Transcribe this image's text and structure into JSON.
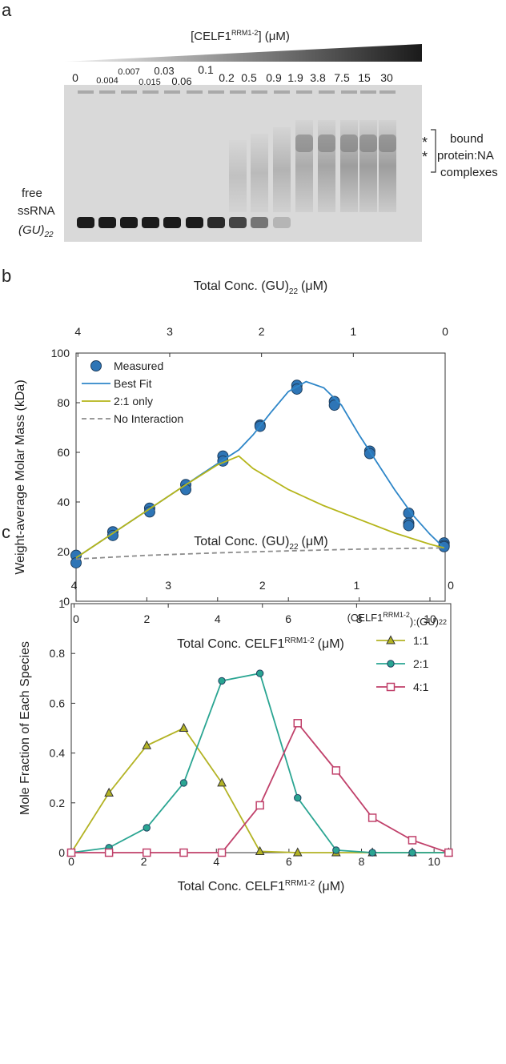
{
  "panel_labels": [
    "a",
    "b",
    "c"
  ],
  "gel": {
    "title": [
      "[CELF1",
      "RRM1-2",
      "] (μM)"
    ],
    "lanes": [
      "0",
      "0.004",
      "0.007",
      "0.015",
      "0.03",
      "0.06",
      "0.1",
      "0.2",
      "0.5",
      "0.9",
      "1.9",
      "3.8",
      "7.5",
      "15",
      "30"
    ],
    "free_label": [
      "free",
      "ssRNA"
    ],
    "rna_label": [
      "(GU)",
      "22"
    ],
    "asterisks": [
      "*",
      "*"
    ],
    "bound_label": [
      "bound",
      "protein:NA",
      "complexes"
    ]
  },
  "chart_data": [
    {
      "type": "line",
      "ylabel": "Weight-average Molar Mass (kDa)",
      "xlabel": [
        "Total Conc. CELF1",
        "RRM1-2",
        "(μM)"
      ],
      "x2label": [
        "Total Conc. (GU)",
        "22",
        "(μM)"
      ],
      "xlim": [
        0,
        10.43
      ],
      "xticks": [
        0,
        2,
        4,
        6,
        8,
        10
      ],
      "x2lim": [
        4.02,
        0
      ],
      "x2ticks": [
        4,
        3,
        2,
        1,
        0
      ],
      "ylim": [
        0,
        100
      ],
      "yticks": [
        0,
        20,
        40,
        60,
        80,
        100
      ],
      "legend": "upper left",
      "series": [
        {
          "name": "Measured",
          "color": "#2e75b6",
          "marker": "circle",
          "line": false,
          "dash": false,
          "x": [
            0,
            0,
            1.04,
            1.04,
            2.08,
            2.08,
            3.1,
            3.1,
            4.15,
            4.15,
            5.2,
            5.2,
            6.24,
            6.24,
            7.3,
            7.3,
            8.3,
            8.3,
            9.4,
            9.4,
            9.4,
            10.4,
            10.4,
            10.4
          ],
          "values": [
            18.5,
            15.5,
            28,
            26.5,
            37.5,
            36,
            47,
            45,
            58.5,
            56.5,
            71,
            70.5,
            87,
            85.5,
            80.5,
            79,
            60.5,
            59.5,
            35.5,
            31.5,
            30.5,
            23.5,
            22.5,
            22
          ]
        },
        {
          "name": "Best Fit",
          "color": "#2e86c8",
          "marker": "none",
          "line": true,
          "dash": false,
          "x": [
            0,
            1,
            2,
            3,
            4,
            4.6,
            5,
            5.5,
            6,
            6.5,
            7,
            7.5,
            8,
            8.5,
            9,
            9.5,
            10,
            10.4
          ],
          "values": [
            17.5,
            27,
            36.5,
            46,
            55.5,
            61,
            67,
            76,
            84.5,
            88.5,
            86,
            79,
            67,
            56,
            45,
            35,
            27,
            21.5
          ]
        },
        {
          "name": "2:1 only",
          "color": "#b5b51a",
          "marker": "none",
          "line": true,
          "dash": false,
          "x": [
            0,
            1,
            2,
            3,
            4,
            4.6,
            5,
            6,
            7,
            8,
            9,
            10,
            10.4
          ],
          "values": [
            17.5,
            27,
            36.5,
            46,
            55,
            58.5,
            53.5,
            45,
            38.5,
            33,
            27.5,
            23,
            21.5
          ]
        },
        {
          "name": "No Interaction",
          "color": "#8c8c8c",
          "marker": "none",
          "line": true,
          "dash": true,
          "x": [
            0,
            2,
            4,
            6,
            8,
            10.4
          ],
          "values": [
            17,
            18.5,
            19.5,
            20.3,
            21,
            21.5
          ]
        }
      ]
    },
    {
      "type": "line",
      "ylabel": "Mole Fraction of Each Species",
      "xlabel": [
        "Total Conc. CELF1",
        "RRM1-2",
        "(μM)"
      ],
      "x2label": [
        "Total Conc. (GU)",
        "22",
        "(μM)"
      ],
      "xlim": [
        0,
        10.46
      ],
      "xticks": [
        0,
        2,
        4,
        6,
        8,
        10
      ],
      "x2lim": [
        4.03,
        0
      ],
      "x2ticks": [
        4,
        3,
        2,
        1,
        0
      ],
      "ylim": [
        0,
        1
      ],
      "yticks": [
        0,
        0.2,
        0.4,
        0.6,
        0.8,
        1
      ],
      "legend": "upper right",
      "legend_title": [
        "(CELF1",
        "RRM1-2",
        "):(GU)",
        "22"
      ],
      "series": [
        {
          "name": "1:1",
          "color": "#b3b324",
          "marker": "triangle",
          "line": true,
          "dash": false,
          "x": [
            0,
            1.04,
            2.08,
            3.1,
            4.15,
            5.2,
            6.24,
            7.3,
            8.3,
            9.4,
            10.4
          ],
          "values": [
            0,
            0.24,
            0.43,
            0.5,
            0.28,
            0.005,
            0,
            0,
            0,
            0,
            0
          ]
        },
        {
          "name": "2:1",
          "color": "#2aa592",
          "marker": "circle",
          "line": true,
          "dash": false,
          "x": [
            0,
            1.04,
            2.08,
            3.1,
            4.15,
            5.2,
            6.24,
            7.3,
            8.3,
            9.4,
            10.4
          ],
          "values": [
            0,
            0.02,
            0.1,
            0.28,
            0.69,
            0.72,
            0.22,
            0.01,
            0,
            0,
            0
          ]
        },
        {
          "name": "4:1",
          "color": "#c0406a",
          "marker": "square",
          "line": true,
          "dash": false,
          "x": [
            0,
            1.04,
            2.08,
            3.1,
            4.15,
            5.2,
            6.24,
            7.3,
            8.3,
            9.4,
            10.4
          ],
          "values": [
            0,
            0,
            0,
            0,
            0,
            0.19,
            0.52,
            0.33,
            0.14,
            0.05,
            0
          ]
        }
      ]
    }
  ]
}
